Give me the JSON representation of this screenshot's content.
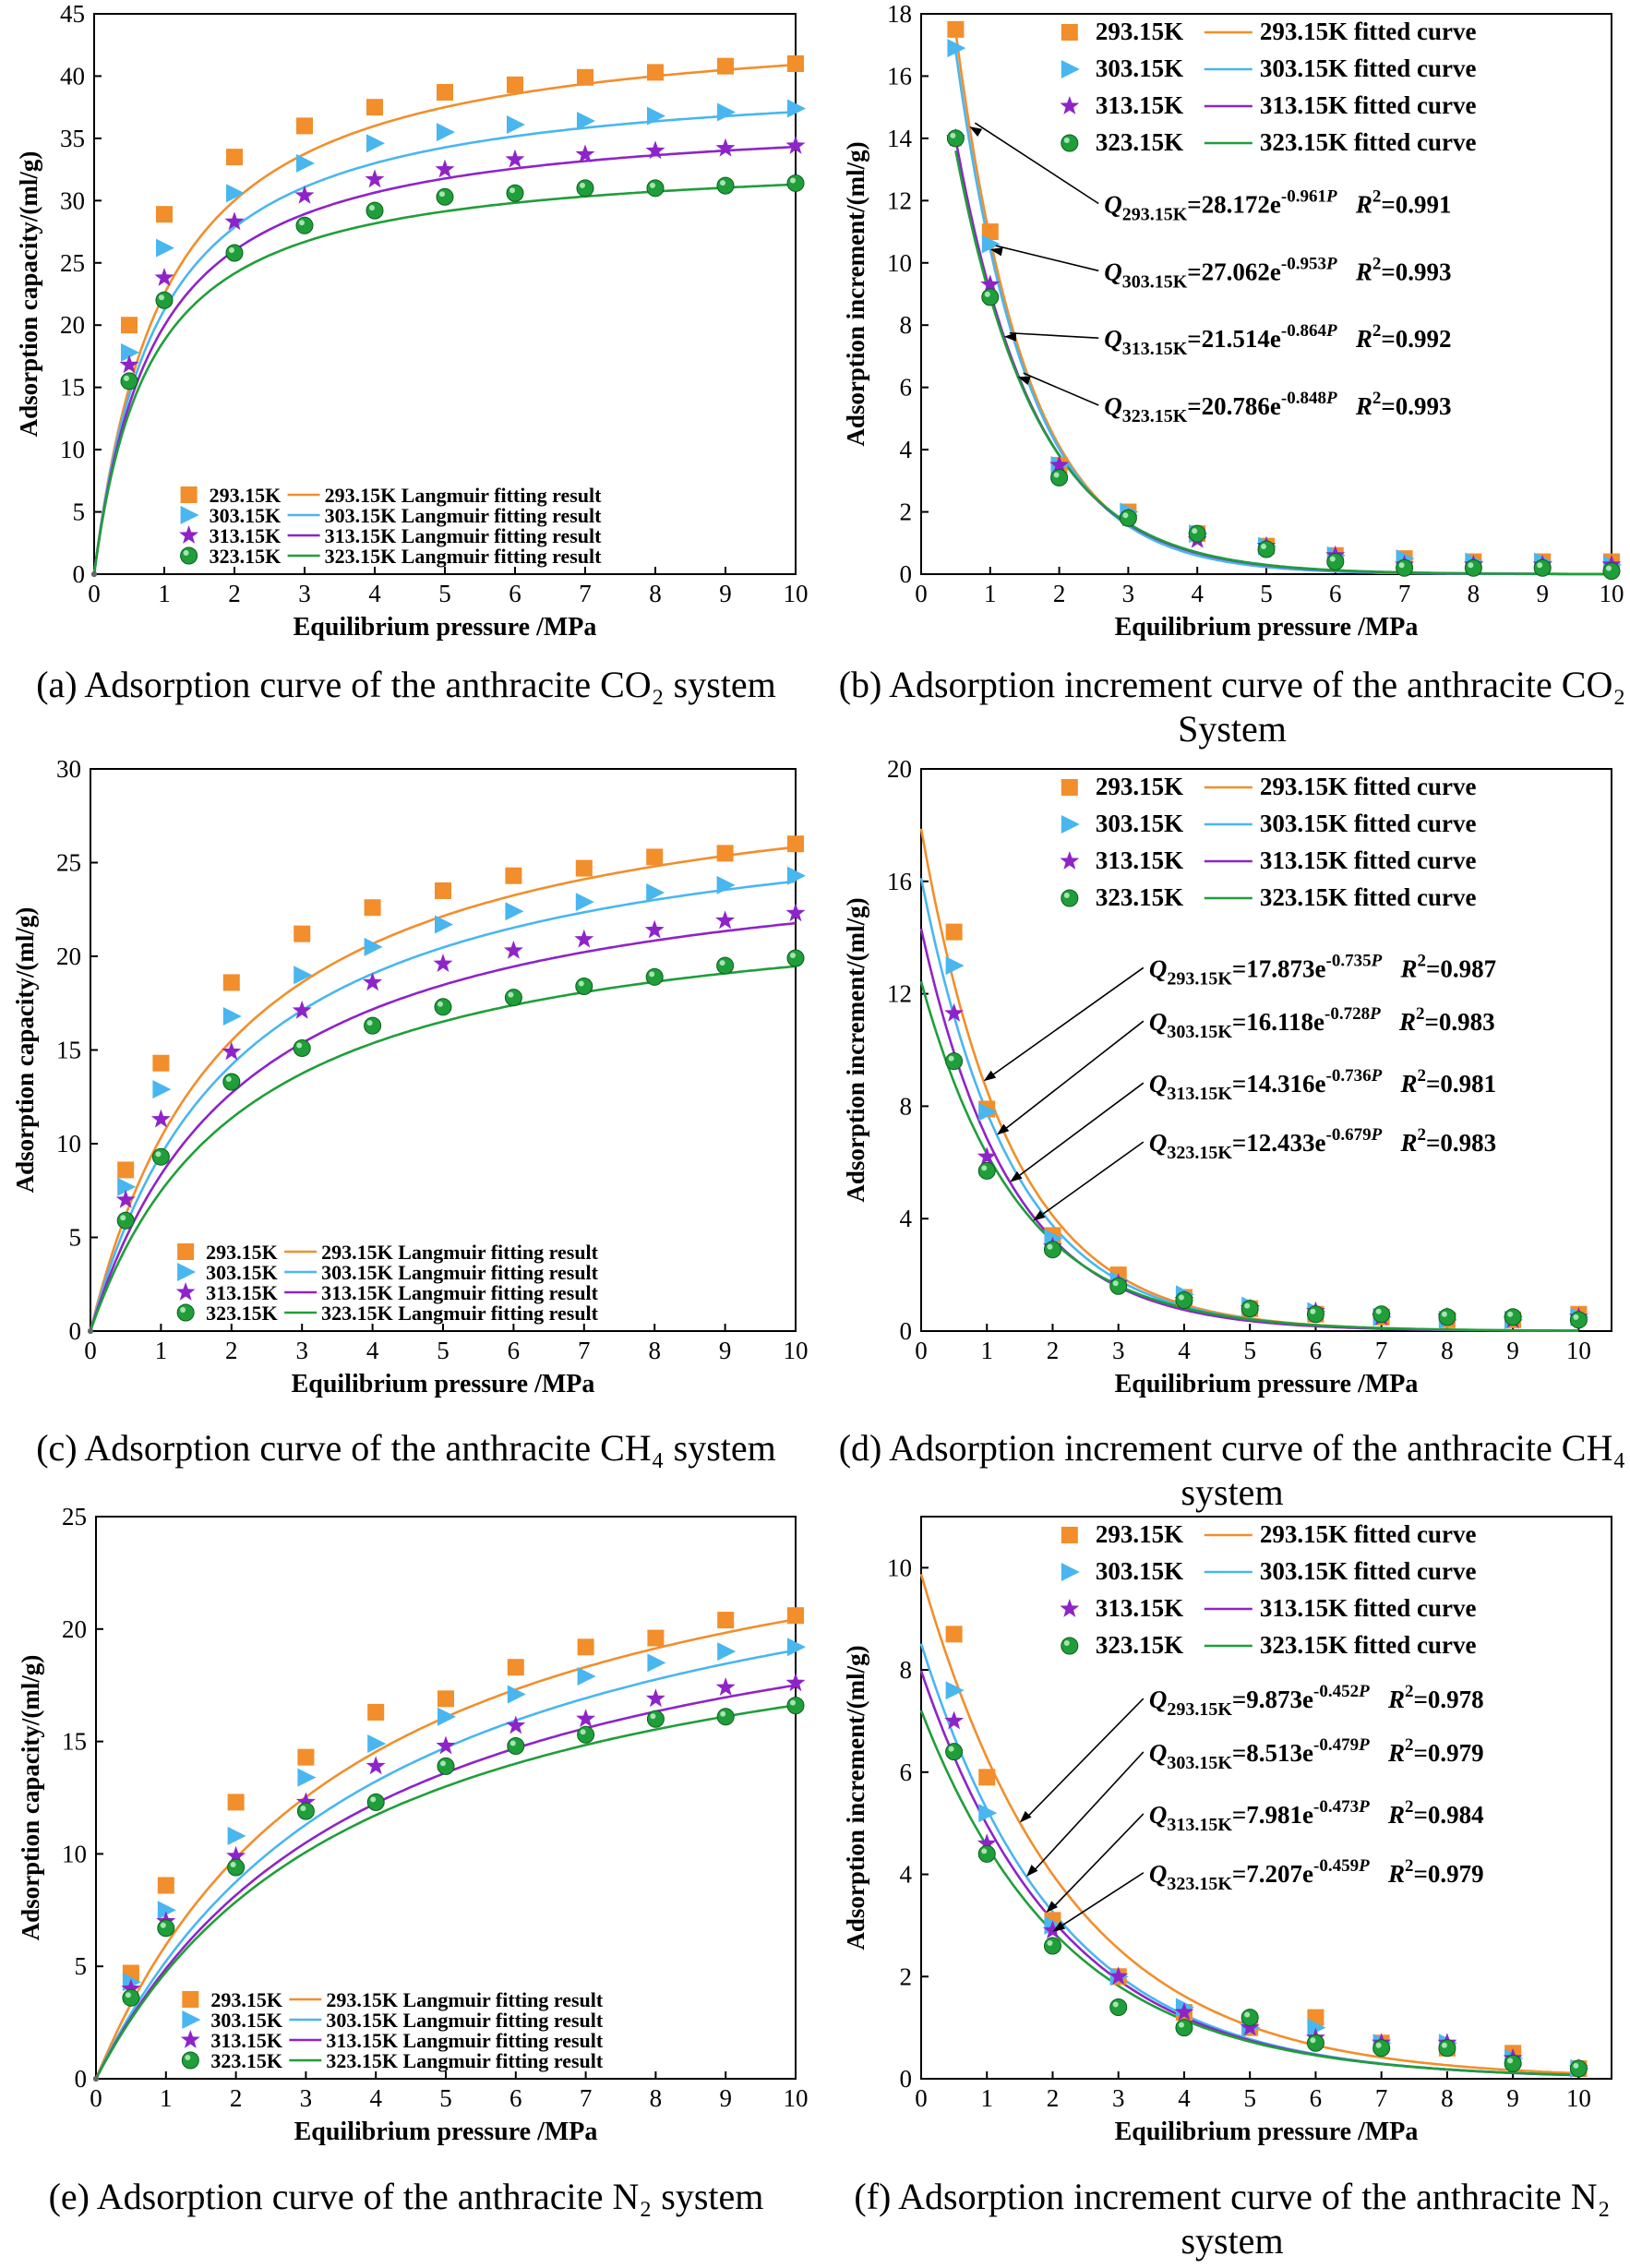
{
  "colors": {
    "293.15K": "#f28e2b",
    "303.15K": "#49b6f0",
    "313.15K": "#8e24c8",
    "323.15K": "#1f9e3a"
  },
  "common": {
    "xlabel": "Equilibrium pressure /MPa"
  },
  "chart_data": [
    {
      "id": "a",
      "type": "scatter",
      "caption": "(a) Adsorption curve of the anthracite CO₂ system",
      "ylabel": "Adsorption capacity/(ml/g)",
      "xlabel": "Equilibrium pressure /MPa",
      "xlim": [
        0,
        10
      ],
      "ylim": [
        0,
        45
      ],
      "xticks": [
        0,
        1,
        2,
        3,
        4,
        5,
        6,
        7,
        8,
        9,
        10
      ],
      "yticks": [
        0,
        5,
        10,
        15,
        20,
        25,
        30,
        35,
        40,
        45
      ],
      "legend_position": "bottom-right",
      "x": [
        0.5,
        1,
        2,
        3,
        4,
        5,
        6,
        7,
        8,
        9,
        10
      ],
      "series": [
        {
          "name": "293.15K",
          "fit_name": "293.15K Langmuir fitting result",
          "values": [
            20,
            28.9,
            33.5,
            36,
            37.5,
            38.7,
            39.3,
            39.9,
            40.3,
            40.8,
            41
          ],
          "fit": {
            "model": "langmuir",
            "a": 45.0,
            "b": 1.0
          }
        },
        {
          "name": "303.15K",
          "fit_name": "303.15K Langmuir fitting result",
          "values": [
            17.8,
            26.2,
            30.6,
            33,
            34.6,
            35.5,
            36.1,
            36.4,
            36.8,
            37.1,
            37.4
          ],
          "fit": {
            "model": "langmuir",
            "a": 40.5,
            "b": 1.1
          }
        },
        {
          "name": "313.15K",
          "fit_name": "313.15K Langmuir fitting result",
          "values": [
            16.8,
            23.8,
            28.3,
            30.4,
            31.7,
            32.5,
            33.3,
            33.7,
            34,
            34.2,
            34.4
          ],
          "fit": {
            "model": "langmuir",
            "a": 37.3,
            "b": 1.15
          }
        },
        {
          "name": "323.15K",
          "fit_name": "323.15K Langmuir fitting result",
          "values": [
            15.5,
            22,
            25.8,
            28,
            29.2,
            30.3,
            30.6,
            31,
            31,
            31.2,
            31.4
          ],
          "fit": {
            "model": "langmuir",
            "a": 33.8,
            "b": 1.25
          }
        }
      ]
    },
    {
      "id": "b",
      "type": "scatter",
      "caption": "(b) Adsorption increment curve of the anthracite CO₂ System",
      "ylabel": "Adsorption increment/(ml/g)",
      "xlabel": "Equilibrium pressure /MPa",
      "xlim": [
        0,
        10
      ],
      "ylim": [
        0,
        18
      ],
      "xticks": [
        0,
        1,
        2,
        3,
        4,
        5,
        6,
        7,
        8,
        9,
        10
      ],
      "yticks": [
        0,
        2,
        4,
        6,
        8,
        10,
        12,
        14,
        16,
        18
      ],
      "legend_position": "top-right",
      "x": [
        0.5,
        1,
        2,
        3,
        4,
        5,
        6,
        7,
        8,
        9,
        10
      ],
      "series": [
        {
          "name": "293.15K",
          "fit_name": "293.15K fitted curve",
          "values": [
            17.5,
            11,
            3.5,
            2,
            1.3,
            0.9,
            0.6,
            0.5,
            0.4,
            0.4,
            0.4
          ],
          "fit": {
            "model": "exp",
            "a": 28.172,
            "b": 0.961
          },
          "equation": {
            "label": "Q",
            "sub": "293.15K",
            "coef": "=28.172e",
            "exp": "-0.961",
            "var": "P",
            "r2": "=0.991"
          }
        },
        {
          "name": "303.15K",
          "fit_name": "303.15K fitted curve",
          "values": [
            16.9,
            10.6,
            3.5,
            2,
            1.3,
            0.9,
            0.6,
            0.5,
            0.4,
            0.4,
            0.3
          ],
          "fit": {
            "model": "exp",
            "a": 27.062,
            "b": 0.953
          },
          "equation": {
            "label": "Q",
            "sub": "303.15K",
            "coef": "=27.062e",
            "exp": "-0.953",
            "var": "P",
            "r2": "=0.993"
          }
        },
        {
          "name": "313.15K",
          "fit_name": "313.15K fitted curve",
          "values": [
            14,
            9.3,
            3.5,
            1.8,
            1.1,
            0.9,
            0.6,
            0.3,
            0.3,
            0.3,
            0.3
          ],
          "fit": {
            "model": "exp",
            "a": 21.514,
            "b": 0.864
          },
          "equation": {
            "label": "Q",
            "sub": "313.15K",
            "coef": "=21.514e",
            "exp": "-0.864",
            "var": "P",
            "r2": "=0.992"
          }
        },
        {
          "name": "323.15K",
          "fit_name": "323.15K fitted curve",
          "values": [
            14,
            8.9,
            3.1,
            1.8,
            1.3,
            0.8,
            0.4,
            0.2,
            0.2,
            0.2,
            0.1
          ],
          "fit": {
            "model": "exp",
            "a": 20.786,
            "b": 0.848
          },
          "equation": {
            "label": "Q",
            "sub": "323.15K",
            "coef": "=20.786e",
            "exp": "-0.848",
            "var": "P",
            "r2": "=0.993"
          }
        }
      ]
    },
    {
      "id": "c",
      "type": "scatter",
      "caption": "(c) Adsorption curve of the anthracite CH₄ system",
      "ylabel": "Adsorption capacity/(ml/g)",
      "xlabel": "Equilibrium pressure /MPa",
      "xlim": [
        0,
        10
      ],
      "ylim": [
        0,
        30
      ],
      "xticks": [
        0,
        1,
        2,
        3,
        4,
        5,
        6,
        7,
        8,
        9,
        10
      ],
      "yticks": [
        0,
        5,
        10,
        15,
        20,
        25,
        30
      ],
      "legend_position": "bottom-right",
      "x": [
        0.5,
        1,
        2,
        3,
        4,
        5,
        6,
        7,
        8,
        9,
        10
      ],
      "series": [
        {
          "name": "293.15K",
          "fit_name": "293.15K Langmuir fitting result",
          "values": [
            8.6,
            14.3,
            18.6,
            21.2,
            22.6,
            23.5,
            24.3,
            24.7,
            25.3,
            25.5,
            26
          ],
          "fit": {
            "model": "langmuir",
            "a": 31.0,
            "b": 0.5
          }
        },
        {
          "name": "303.15K",
          "fit_name": "303.15K Langmuir fitting result",
          "values": [
            7.7,
            12.9,
            16.8,
            19,
            20.5,
            21.7,
            22.4,
            22.9,
            23.4,
            23.8,
            24.3
          ],
          "fit": {
            "model": "langmuir",
            "a": 29.0,
            "b": 0.48
          }
        },
        {
          "name": "313.15K",
          "fit_name": "313.15K Langmuir fitting result",
          "values": [
            7,
            11.3,
            14.9,
            17.1,
            18.6,
            19.6,
            20.3,
            20.9,
            21.4,
            21.9,
            22.3
          ],
          "fit": {
            "model": "langmuir",
            "a": 26.5,
            "b": 0.46
          }
        },
        {
          "name": "323.15K",
          "fit_name": "323.15K Langmuir fitting result",
          "values": [
            5.9,
            9.3,
            13.3,
            15.1,
            16.3,
            17.3,
            17.8,
            18.4,
            18.9,
            19.5,
            19.9
          ],
          "fit": {
            "model": "langmuir",
            "a": 23.7,
            "b": 0.46
          }
        }
      ]
    },
    {
      "id": "d",
      "type": "scatter",
      "caption": "(d) Adsorption increment curve of the anthracite CH₄ system",
      "ylabel": "Adsorption increment/(ml/g)",
      "xlabel": "Equilibrium pressure /MPa",
      "xlim": [
        0,
        10.5
      ],
      "ylim": [
        0,
        20
      ],
      "xticks": [
        0,
        1,
        2,
        3,
        4,
        5,
        6,
        7,
        8,
        9,
        10
      ],
      "yticks": [
        0,
        4,
        8,
        12,
        16,
        20
      ],
      "legend_position": "top-right",
      "x": [
        0.5,
        1,
        2,
        3,
        4,
        5,
        6,
        7,
        8,
        9,
        10
      ],
      "series": [
        {
          "name": "293.15K",
          "fit_name": "293.15K fitted curve",
          "values": [
            14.2,
            7.9,
            3.4,
            2,
            1.2,
            0.8,
            0.6,
            0.5,
            0.4,
            0.4,
            0.6
          ],
          "fit": {
            "model": "exp",
            "a": 17.873,
            "b": 0.735
          },
          "equation": {
            "label": "Q",
            "sub": "293.15K",
            "coef": "=17.873e",
            "exp": "-0.735",
            "var": "P",
            "r2": "=0.987"
          }
        },
        {
          "name": "303.15K",
          "fit_name": "303.15K fitted curve",
          "values": [
            13,
            7.8,
            3.3,
            1.8,
            1.3,
            0.9,
            0.7,
            0.5,
            0.4,
            0.4,
            0.5
          ],
          "fit": {
            "model": "exp",
            "a": 16.118,
            "b": 0.728
          },
          "equation": {
            "label": "Q",
            "sub": "303.15K",
            "coef": "=16.118e",
            "exp": "-0.728",
            "var": "P",
            "r2": "=0.983"
          }
        },
        {
          "name": "313.15K",
          "fit_name": "313.15K fitted curve",
          "values": [
            11.3,
            6.2,
            3,
            1.7,
            1.1,
            0.8,
            0.7,
            0.5,
            0.5,
            0.4,
            0.5
          ],
          "fit": {
            "model": "exp",
            "a": 14.316,
            "b": 0.736
          },
          "equation": {
            "label": "Q",
            "sub": "313.15K",
            "coef": "=14.316e",
            "exp": "-0.736",
            "var": "P",
            "r2": "=0.981"
          }
        },
        {
          "name": "323.15K",
          "fit_name": "323.15K fitted curve",
          "values": [
            9.6,
            5.7,
            2.9,
            1.6,
            1.1,
            0.8,
            0.6,
            0.6,
            0.5,
            0.5,
            0.4
          ],
          "fit": {
            "model": "exp",
            "a": 12.433,
            "b": 0.679
          },
          "equation": {
            "label": "Q",
            "sub": "323.15K",
            "coef": "=12.433e",
            "exp": "-0.679",
            "var": "P",
            "r2": "=0.983"
          }
        }
      ]
    },
    {
      "id": "e",
      "type": "scatter",
      "caption": "(e) Adsorption curve of the anthracite N₂ system",
      "ylabel": "Adsorption capacity/(ml/g)",
      "xlabel": "Equilibrium pressure /MPa",
      "xlim": [
        0,
        10
      ],
      "ylim": [
        0,
        25
      ],
      "xticks": [
        0,
        1,
        2,
        3,
        4,
        5,
        6,
        7,
        8,
        9,
        10
      ],
      "yticks": [
        0,
        5,
        10,
        15,
        20,
        25
      ],
      "legend_position": "bottom-right",
      "x": [
        0.5,
        1,
        2,
        3,
        4,
        5,
        6,
        7,
        8,
        9,
        10
      ],
      "series": [
        {
          "name": "293.15K",
          "fit_name": "293.15K Langmuir fitting result",
          "values": [
            4.7,
            8.6,
            12.3,
            14.3,
            16.3,
            16.9,
            18.3,
            19.2,
            19.6,
            20.4,
            20.6
          ],
          "fit": {
            "model": "langmuir",
            "a": 28.0,
            "b": 0.27
          }
        },
        {
          "name": "303.15K",
          "fit_name": "303.15K Langmuir fitting result",
          "values": [
            4.3,
            7.5,
            10.8,
            13.4,
            14.9,
            16.1,
            17.1,
            17.9,
            18.5,
            19,
            19.2
          ],
          "fit": {
            "model": "langmuir",
            "a": 27.0,
            "b": 0.24
          }
        },
        {
          "name": "313.15K",
          "fit_name": "313.15K Langmuir fitting result",
          "values": [
            4,
            7,
            9.9,
            12.3,
            13.9,
            14.8,
            15.7,
            16,
            16.9,
            17.4,
            17.6
          ],
          "fit": {
            "model": "langmuir",
            "a": 24.5,
            "b": 0.25
          }
        },
        {
          "name": "323.15K",
          "fit_name": "323.15K Langmuir fitting result",
          "values": [
            3.6,
            6.7,
            9.4,
            11.9,
            12.3,
            13.9,
            14.8,
            15.3,
            16,
            16.1,
            16.6
          ],
          "fit": {
            "model": "langmuir",
            "a": 23.0,
            "b": 0.26
          }
        }
      ]
    },
    {
      "id": "f",
      "type": "scatter",
      "caption": "(f) Adsorption increment curve of the anthracite N₂ system",
      "ylabel": "Adsorption increment/(ml/g)",
      "xlabel": "Equilibrium pressure /MPa",
      "xlim": [
        0,
        10.5
      ],
      "ylim": [
        0,
        11
      ],
      "xticks": [
        0,
        1,
        2,
        3,
        4,
        5,
        6,
        7,
        8,
        9,
        10
      ],
      "yticks": [
        0,
        2,
        4,
        6,
        8,
        10
      ],
      "legend_position": "top-right",
      "x": [
        0.5,
        1,
        2,
        3,
        4,
        5,
        6,
        7,
        8,
        9,
        10
      ],
      "series": [
        {
          "name": "293.15K",
          "fit_name": "293.15K fitted curve",
          "values": [
            8.7,
            5.9,
            3.1,
            2,
            1.3,
            1,
            1.2,
            0.7,
            0.6,
            0.5,
            0.2
          ],
          "fit": {
            "model": "exp",
            "a": 9.873,
            "b": 0.452
          },
          "equation": {
            "label": "Q",
            "sub": "293.15K",
            "coef": "=9.873e",
            "exp": "-0.452",
            "var": "P",
            "r2": "=0.978"
          }
        },
        {
          "name": "303.15K",
          "fit_name": "303.15K fitted curve",
          "values": [
            7.6,
            5.2,
            3,
            2,
            1.4,
            1,
            1,
            0.7,
            0.7,
            0.4,
            0.2
          ],
          "fit": {
            "model": "exp",
            "a": 8.513,
            "b": 0.479
          },
          "equation": {
            "label": "Q",
            "sub": "303.15K",
            "coef": "=8.513e",
            "exp": "-0.479",
            "var": "P",
            "r2": "=0.979"
          }
        },
        {
          "name": "313.15K",
          "fit_name": "313.15K fitted curve",
          "values": [
            7,
            4.6,
            2.9,
            2,
            1.3,
            1,
            0.8,
            0.7,
            0.7,
            0.4,
            0.2
          ],
          "fit": {
            "model": "exp",
            "a": 7.981,
            "b": 0.473
          },
          "equation": {
            "label": "Q",
            "sub": "313.15K",
            "coef": "=7.981e",
            "exp": "-0.473",
            "var": "P",
            "r2": "=0.984"
          }
        },
        {
          "name": "323.15K",
          "fit_name": "323.15K fitted curve",
          "values": [
            6.4,
            4.4,
            2.6,
            1.4,
            1,
            1.2,
            0.7,
            0.6,
            0.6,
            0.3,
            0.2
          ],
          "fit": {
            "model": "exp",
            "a": 7.207,
            "b": 0.459
          },
          "equation": {
            "label": "Q",
            "sub": "323.15K",
            "coef": "=7.207e",
            "exp": "-0.459",
            "var": "P",
            "r2": "=0.979"
          }
        }
      ]
    }
  ]
}
